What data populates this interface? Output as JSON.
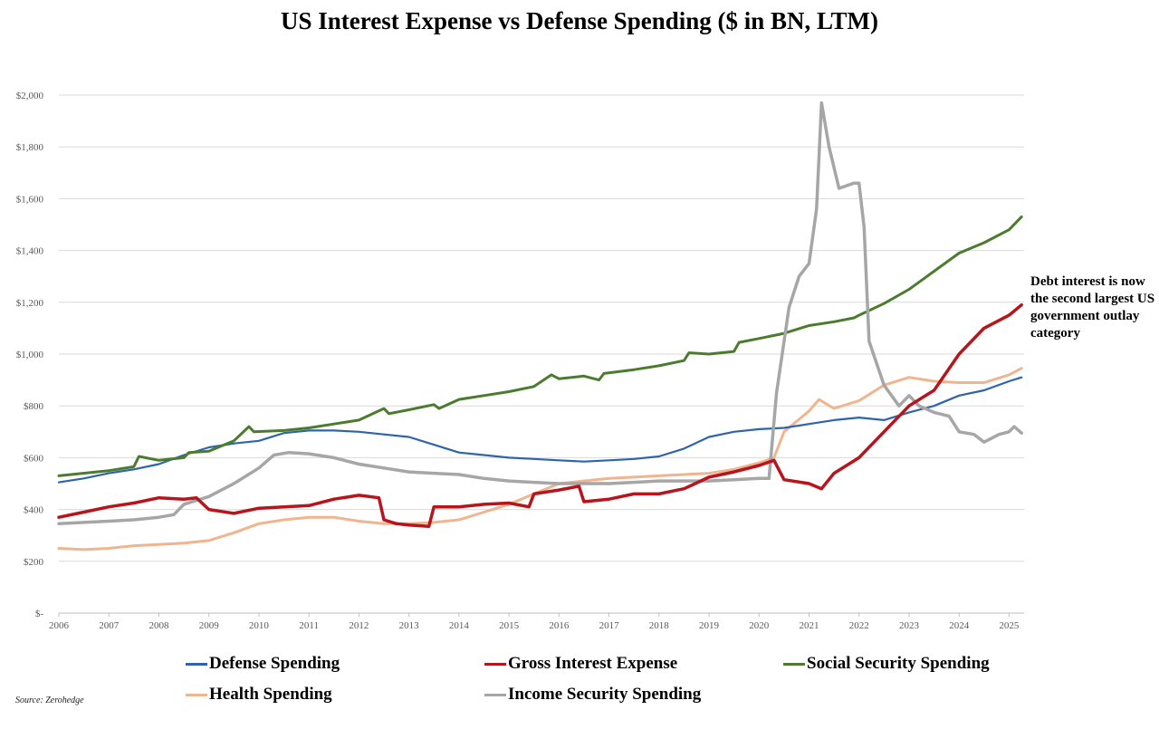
{
  "chart_data": {
    "type": "line",
    "title": "US Interest Expense vs Defense Spending ($ in BN, LTM)",
    "xlabel": "",
    "ylabel": "",
    "x_range": [
      2006,
      2025.3
    ],
    "ylim": [
      0,
      2000
    ],
    "y_ticks": [
      0,
      200,
      400,
      600,
      800,
      1000,
      1200,
      1400,
      1600,
      1800,
      2000
    ],
    "y_tick_labels": [
      "$-",
      "$200",
      "$400",
      "$600",
      "$800",
      "$1,000",
      "$1,200",
      "$1,400",
      "$1,600",
      "$1,800",
      "$2,000"
    ],
    "x_ticks": [
      2006,
      2007,
      2008,
      2009,
      2010,
      2011,
      2012,
      2013,
      2014,
      2015,
      2016,
      2017,
      2018,
      2019,
      2020,
      2021,
      2022,
      2023,
      2024,
      2025
    ],
    "x_tick_labels": [
      "2006",
      "2007",
      "2008",
      "2009",
      "2010",
      "2011",
      "2012",
      "2013",
      "2014",
      "2015",
      "2016",
      "2017",
      "2018",
      "2019",
      "2020",
      "2021",
      "2022",
      "2023",
      "2024",
      "2025"
    ],
    "grid": true,
    "legend_position": "bottom",
    "annotation": "Debt interest is now the second largest US government outlay category",
    "source": "Source: Zerohedge",
    "series": [
      {
        "name": "Defense Spending",
        "color": "#2e64ad",
        "x": [
          2006,
          2006.5,
          2007,
          2007.5,
          2008,
          2008.5,
          2009,
          2009.5,
          2010,
          2010.5,
          2011,
          2011.5,
          2012,
          2012.5,
          2013,
          2013.5,
          2014,
          2014.5,
          2015,
          2015.5,
          2016,
          2016.5,
          2017,
          2017.5,
          2018,
          2018.5,
          2019,
          2019.5,
          2020,
          2020.5,
          2021,
          2021.5,
          2022,
          2022.5,
          2023,
          2023.5,
          2024,
          2024.5,
          2025,
          2025.25
        ],
        "values": [
          505,
          520,
          540,
          555,
          575,
          610,
          640,
          655,
          665,
          695,
          705,
          705,
          700,
          690,
          680,
          650,
          620,
          610,
          600,
          595,
          590,
          585,
          590,
          595,
          605,
          635,
          680,
          700,
          710,
          715,
          730,
          745,
          755,
          745,
          775,
          800,
          840,
          860,
          895,
          910
        ]
      },
      {
        "name": "Gross Interest Expense",
        "color": "#b8141b",
        "x": [
          2006,
          2006.5,
          2007,
          2007.5,
          2008,
          2008.5,
          2008.75,
          2009,
          2009.5,
          2010,
          2010.5,
          2011,
          2011.5,
          2012,
          2012.4,
          2012.5,
          2012.75,
          2013,
          2013.4,
          2013.5,
          2014,
          2014.5,
          2015,
          2015.4,
          2015.5,
          2016,
          2016.4,
          2016.5,
          2017,
          2017.5,
          2018,
          2018.5,
          2019,
          2019.5,
          2020,
          2020.3,
          2020.5,
          2021,
          2021.25,
          2021.5,
          2022,
          2022.5,
          2023,
          2023.5,
          2024,
          2024.5,
          2025,
          2025.25
        ],
        "values": [
          370,
          390,
          410,
          425,
          445,
          440,
          445,
          400,
          385,
          405,
          410,
          415,
          440,
          455,
          445,
          360,
          345,
          340,
          335,
          410,
          410,
          420,
          425,
          410,
          460,
          475,
          490,
          430,
          440,
          460,
          460,
          480,
          525,
          545,
          570,
          590,
          515,
          500,
          480,
          540,
          600,
          700,
          800,
          860,
          1000,
          1100,
          1150,
          1190
        ]
      },
      {
        "name": "Social Security Spending",
        "color": "#4b7c2e",
        "x": [
          2006,
          2007,
          2007.5,
          2007.6,
          2008,
          2008.5,
          2008.6,
          2009,
          2009.5,
          2009.8,
          2009.9,
          2010.5,
          2011,
          2011.5,
          2012,
          2012.5,
          2012.6,
          2013,
          2013.5,
          2013.6,
          2014,
          2014.5,
          2015,
          2015.5,
          2015.85,
          2016,
          2016.5,
          2016.8,
          2016.9,
          2017.5,
          2018,
          2018.5,
          2018.6,
          2019,
          2019.5,
          2019.6,
          2020,
          2020.5,
          2021,
          2021.5,
          2021.9,
          2022,
          2022.5,
          2023,
          2023.5,
          2024,
          2024.5,
          2025,
          2025.25
        ],
        "values": [
          530,
          550,
          565,
          605,
          590,
          600,
          620,
          625,
          665,
          720,
          700,
          705,
          715,
          730,
          745,
          790,
          770,
          785,
          805,
          790,
          825,
          840,
          855,
          875,
          920,
          905,
          915,
          900,
          925,
          940,
          955,
          975,
          1005,
          1000,
          1010,
          1045,
          1060,
          1080,
          1110,
          1125,
          1140,
          1150,
          1195,
          1250,
          1320,
          1390,
          1430,
          1480,
          1530
        ]
      },
      {
        "name": "Health Spending",
        "color": "#f0b48e",
        "x": [
          2006,
          2006.5,
          2007,
          2007.5,
          2008,
          2008.5,
          2009,
          2009.5,
          2010,
          2010.5,
          2011,
          2011.5,
          2012,
          2012.5,
          2013,
          2013.5,
          2014,
          2014.5,
          2015,
          2015.5,
          2016,
          2016.5,
          2017,
          2017.5,
          2018,
          2018.5,
          2019,
          2019.5,
          2020,
          2020.3,
          2020.5,
          2021,
          2021.2,
          2021.5,
          2022,
          2022.5,
          2023,
          2023.5,
          2024,
          2024.5,
          2025,
          2025.25
        ],
        "values": [
          250,
          245,
          250,
          260,
          265,
          270,
          280,
          310,
          345,
          360,
          370,
          370,
          355,
          345,
          345,
          350,
          360,
          390,
          420,
          460,
          500,
          510,
          520,
          525,
          530,
          535,
          540,
          555,
          580,
          600,
          700,
          780,
          825,
          790,
          820,
          880,
          910,
          895,
          890,
          890,
          920,
          945
        ]
      },
      {
        "name": "Income Security Spending",
        "color": "#a6a6a6",
        "x": [
          2006,
          2006.5,
          2007,
          2007.5,
          2008,
          2008.3,
          2008.5,
          2009,
          2009.5,
          2010,
          2010.3,
          2010.6,
          2011,
          2011.5,
          2012,
          2012.5,
          2013,
          2013.5,
          2014,
          2014.5,
          2015,
          2015.5,
          2016,
          2016.5,
          2017,
          2017.5,
          2018,
          2018.5,
          2019,
          2019.5,
          2020,
          2020.2,
          2020.35,
          2020.6,
          2020.8,
          2021,
          2021.15,
          2021.25,
          2021.4,
          2021.6,
          2021.9,
          2022,
          2022.1,
          2022.2,
          2022.5,
          2022.8,
          2023,
          2023.2,
          2023.5,
          2023.8,
          2024,
          2024.3,
          2024.5,
          2024.8,
          2025,
          2025.1,
          2025.25
        ],
        "values": [
          345,
          350,
          355,
          360,
          370,
          380,
          420,
          450,
          500,
          560,
          610,
          620,
          615,
          600,
          575,
          560,
          545,
          540,
          535,
          520,
          510,
          505,
          500,
          500,
          500,
          505,
          510,
          510,
          510,
          515,
          520,
          520,
          850,
          1180,
          1300,
          1350,
          1560,
          1970,
          1800,
          1640,
          1660,
          1660,
          1490,
          1050,
          880,
          800,
          840,
          800,
          775,
          760,
          700,
          690,
          660,
          690,
          700,
          720,
          695
        ]
      }
    ]
  }
}
